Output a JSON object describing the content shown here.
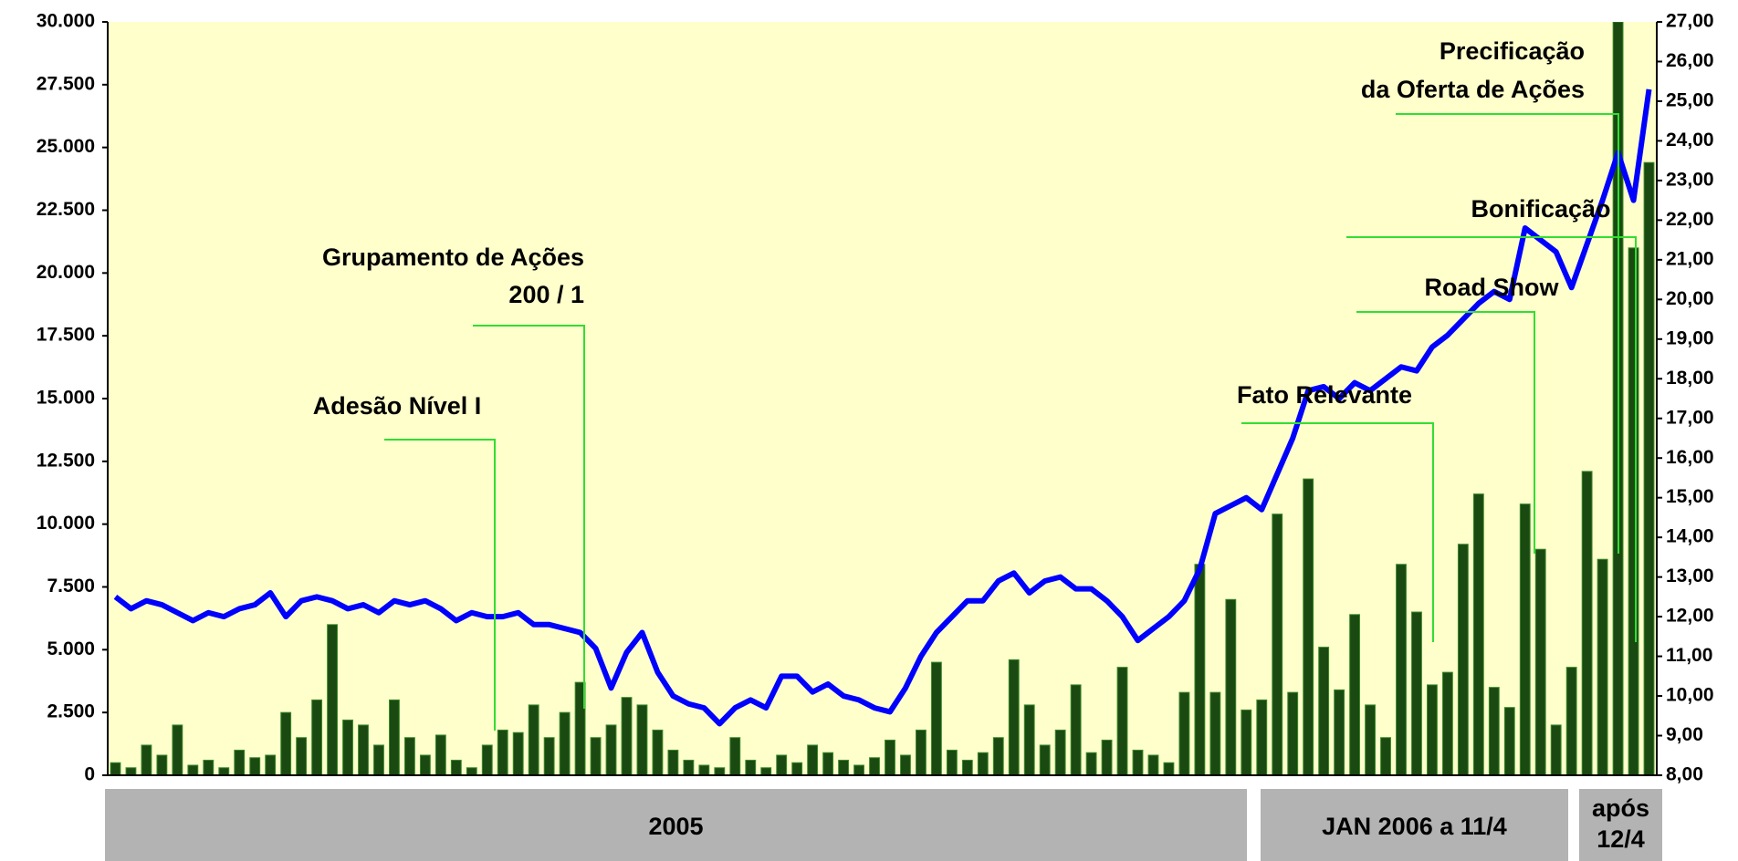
{
  "chart_data": {
    "type": "bar_line",
    "series": [
      {
        "name": null,
        "type": "bar",
        "color": "#1a4a12",
        "axis": "y",
        "values": [
          500,
          300,
          1200,
          800,
          2000,
          400,
          600,
          300,
          1000,
          700,
          800,
          2500,
          1500,
          3000,
          6000,
          2200,
          2000,
          1200,
          3000,
          1500,
          800,
          1600,
          600,
          300,
          1200,
          1800,
          1700,
          2800,
          1500,
          2500,
          3700,
          1500,
          2000,
          3100,
          2800,
          1800,
          1000,
          600,
          400,
          300,
          1500,
          600,
          300,
          800,
          500,
          1200,
          900,
          600,
          400,
          700,
          1400,
          800,
          1800,
          4500,
          1000,
          600,
          900,
          1500,
          4600,
          2800,
          1200,
          1800,
          3600,
          900,
          1400,
          4300,
          1000,
          800,
          500,
          3300,
          8400,
          3300,
          7000,
          2600,
          3000,
          10400,
          3300,
          11800,
          5100,
          3400,
          6400,
          2800,
          1500,
          8400,
          6500,
          3600,
          4100,
          9200,
          11200,
          3500,
          2700,
          10800,
          9000,
          2000,
          4300,
          12100,
          8600,
          30000,
          21000,
          24400
        ]
      },
      {
        "name": null,
        "type": "line",
        "color": "#0000ff",
        "axis": "y2",
        "values": [
          12.5,
          12.2,
          12.4,
          12.3,
          12.1,
          11.9,
          12.1,
          12.0,
          12.2,
          12.3,
          12.6,
          12.0,
          12.4,
          12.5,
          12.4,
          12.2,
          12.3,
          12.1,
          12.4,
          12.3,
          12.4,
          12.2,
          11.9,
          12.1,
          12.0,
          12.0,
          12.1,
          11.8,
          11.8,
          11.7,
          11.6,
          11.2,
          10.2,
          11.1,
          11.6,
          10.6,
          10.0,
          9.8,
          9.7,
          9.3,
          9.7,
          9.9,
          9.7,
          10.5,
          10.5,
          10.1,
          10.3,
          10.0,
          9.9,
          9.7,
          9.6,
          10.2,
          11.0,
          11.6,
          12.0,
          12.4,
          12.4,
          12.9,
          13.1,
          12.6,
          12.9,
          13.0,
          12.7,
          12.7,
          12.4,
          12.0,
          11.4,
          11.7,
          12.0,
          12.4,
          13.2,
          14.6,
          14.8,
          15.0,
          14.7,
          15.6,
          16.5,
          17.7,
          17.8,
          17.5,
          17.9,
          17.7,
          18.0,
          18.3,
          18.2,
          18.8,
          19.1,
          19.5,
          19.9,
          20.2,
          20.0,
          21.8,
          21.5,
          21.2,
          20.3,
          21.4,
          22.5,
          23.7,
          22.5,
          25.3
        ]
      }
    ],
    "ylim": [
      0,
      30000
    ],
    "yticks": [
      0,
      {
        "value": 2500,
        "label": "2.500"
      },
      {
        "value": 5000,
        "label": "5.000"
      },
      {
        "value": 7500,
        "label": "7.500"
      },
      {
        "value": 10000,
        "label": "10.000"
      },
      {
        "value": 12500,
        "label": "12.500"
      },
      {
        "value": 15000,
        "label": "15.000"
      },
      {
        "value": 17500,
        "label": "17.500"
      },
      {
        "value": 20000,
        "label": "20.000"
      },
      {
        "value": 22500,
        "label": "22.500"
      },
      {
        "value": 25000,
        "label": "25.000"
      },
      {
        "value": 27500,
        "label": "27.500"
      },
      {
        "value": 30000,
        "label": "30.000"
      }
    ],
    "y2lim": [
      8,
      27
    ],
    "y2ticks": [
      {
        "value": 8,
        "label": "8,00"
      },
      {
        "value": 9,
        "label": "9,00"
      },
      {
        "value": 10,
        "label": "10,00"
      },
      {
        "value": 11,
        "label": "11,00"
      },
      {
        "value": 12,
        "label": "12,00"
      },
      {
        "value": 13,
        "label": "13,00"
      },
      {
        "value": 14,
        "label": "14,00"
      },
      {
        "value": 15,
        "label": "15,00"
      },
      {
        "value": 16,
        "label": "16,00"
      },
      {
        "value": 17,
        "label": "17,00"
      },
      {
        "value": 18,
        "label": "18,00"
      },
      {
        "value": 19,
        "label": "19,00"
      },
      {
        "value": 20,
        "label": "20,00"
      },
      {
        "value": 21,
        "label": "21,00"
      },
      {
        "value": 22,
        "label": "22,00"
      },
      {
        "value": 23,
        "label": "23,00"
      },
      {
        "value": 24,
        "label": "24,00"
      },
      {
        "value": 25,
        "label": "25,00"
      },
      {
        "value": 26,
        "label": "26,00"
      },
      {
        "value": 27,
        "label": "27,00"
      }
    ],
    "annotations": [
      [
        "Adesão Nível I"
      ],
      [
        "Grupamento de Ações",
        "200 / 1"
      ],
      [
        "Fato Relevante"
      ],
      [
        "Road Show"
      ],
      [
        "Bonificação"
      ],
      [
        "Precificação",
        "da Oferta de Ações"
      ]
    ],
    "periods": [
      "2005",
      "JAN 2006 a 11/4",
      [
        "após",
        "12/4"
      ]
    ],
    "background": "#ffffcc",
    "annotation_color": "#33dd33",
    "period_color": "#b3b3b3"
  }
}
